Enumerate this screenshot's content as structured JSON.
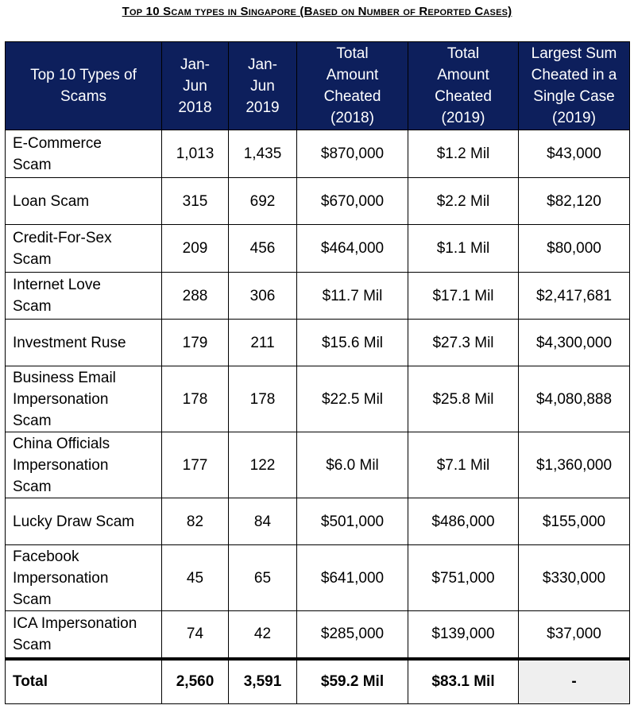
{
  "title": "Top 10 Scam types in Singapore (Based on Number of Reported Cases)",
  "columns": [
    "Top 10 Types of Scams",
    "Jan-Jun 2018",
    "Jan-Jun 2019",
    "Total Amount Cheated (2018)",
    "Total Amount Cheated (2019)",
    "Largest Sum Cheated in a Single Case (2019)"
  ],
  "rows": [
    [
      "E-Commerce Scam",
      "1,013",
      "1,435",
      "$870,000",
      "$1.2 Mil",
      "$43,000"
    ],
    [
      "Loan Scam",
      "315",
      "692",
      "$670,000",
      "$2.2 Mil",
      "$82,120"
    ],
    [
      "Credit-For-Sex Scam",
      "209",
      "456",
      "$464,000",
      "$1.1 Mil",
      "$80,000"
    ],
    [
      "Internet Love Scam",
      "288",
      "306",
      "$11.7 Mil",
      "$17.1 Mil",
      "$2,417,681"
    ],
    [
      "Investment Ruse",
      "179",
      "211",
      "$15.6 Mil",
      "$27.3 Mil",
      "$4,300,000"
    ],
    [
      "Business Email Impersonation Scam",
      "178",
      "178",
      "$22.5 Mil",
      "$25.8 Mil",
      "$4,080,888"
    ],
    [
      "China Officials Impersonation Scam",
      "177",
      "122",
      "$6.0 Mil",
      "$7.1 Mil",
      "$1,360,000"
    ],
    [
      "Lucky Draw Scam",
      "82",
      "84",
      "$501,000",
      "$486,000",
      "$155,000"
    ],
    [
      "Facebook Impersonation Scam",
      "45",
      "65",
      "$641,000",
      "$751,000",
      "$330,000"
    ],
    [
      "ICA Impersonation Scam",
      "74",
      "42",
      "$285,000",
      "$139,000",
      "$37,000"
    ]
  ],
  "total": [
    "Total",
    "2,560",
    "3,591",
    "$59.2 Mil",
    "$83.1 Mil",
    "-"
  ]
}
